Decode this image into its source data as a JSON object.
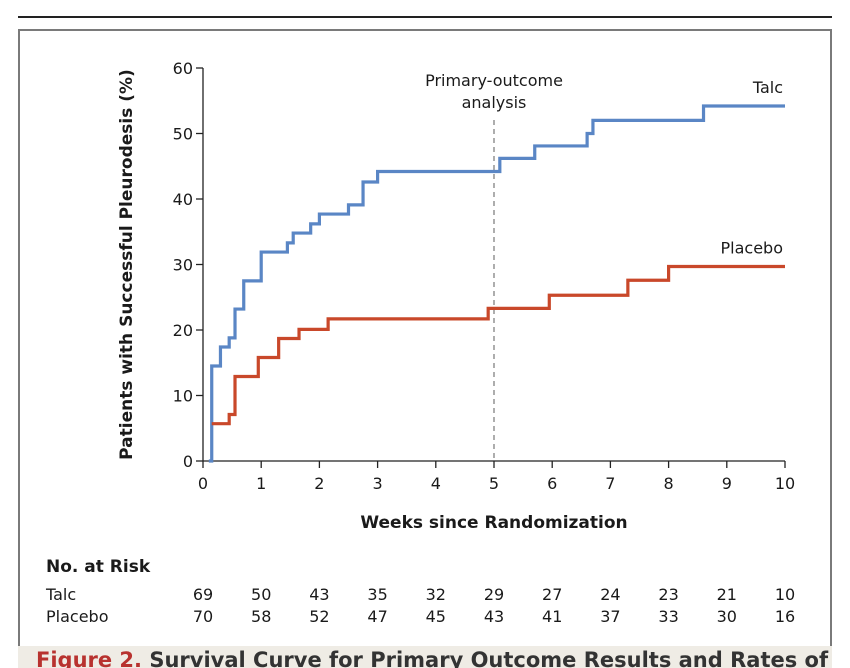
{
  "chart_data": {
    "type": "line",
    "title": "",
    "xlabel": "Weeks since Randomization",
    "ylabel": "Patients with Successful Pleurodesis (%)",
    "xlim": [
      0,
      10
    ],
    "ylim": [
      0,
      60
    ],
    "xticks": [
      0,
      1,
      2,
      3,
      4,
      5,
      6,
      7,
      8,
      9,
      10
    ],
    "yticks": [
      0,
      10,
      20,
      30,
      40,
      50,
      60
    ],
    "grid": false,
    "step": true,
    "series": [
      {
        "name": "Talc",
        "color": "#5a86c5",
        "points": [
          [
            0.1,
            0
          ],
          [
            0.15,
            14.5
          ],
          [
            0.3,
            17.4
          ],
          [
            0.45,
            18.8
          ],
          [
            0.55,
            23.2
          ],
          [
            0.7,
            27.5
          ],
          [
            1.0,
            31.9
          ],
          [
            1.45,
            33.3
          ],
          [
            1.55,
            34.8
          ],
          [
            1.85,
            36.2
          ],
          [
            2.0,
            37.7
          ],
          [
            2.5,
            39.1
          ],
          [
            2.75,
            42.6
          ],
          [
            3.0,
            44.2
          ],
          [
            5.1,
            46.2
          ],
          [
            5.7,
            48.1
          ],
          [
            6.6,
            50.0
          ],
          [
            6.7,
            52.0
          ],
          [
            8.6,
            54.2
          ],
          [
            10.0,
            54.2
          ]
        ]
      },
      {
        "name": "Placebo",
        "color": "#c9482a",
        "points": [
          [
            0.15,
            5.7
          ],
          [
            0.45,
            7.1
          ],
          [
            0.55,
            12.9
          ],
          [
            0.95,
            15.8
          ],
          [
            1.3,
            18.7
          ],
          [
            1.65,
            20.1
          ],
          [
            2.15,
            21.7
          ],
          [
            4.9,
            23.3
          ],
          [
            5.95,
            25.3
          ],
          [
            7.3,
            27.6
          ],
          [
            8.0,
            29.7
          ],
          [
            10.0,
            29.7
          ]
        ]
      }
    ],
    "reference_line": {
      "x": 5,
      "label_lines": [
        "Primary-outcome",
        "analysis"
      ]
    },
    "at_risk": {
      "title": "No. at Risk",
      "rows": [
        {
          "label": "Talc",
          "values": [
            69,
            50,
            43,
            35,
            32,
            29,
            27,
            24,
            23,
            21,
            10
          ]
        },
        {
          "label": "Placebo",
          "values": [
            70,
            58,
            52,
            47,
            45,
            43,
            41,
            37,
            33,
            30,
            16
          ]
        }
      ]
    }
  },
  "caption": {
    "label": "Figure 2.",
    "text": "Survival Curve for Primary Outcome Results and Rates of Successful"
  }
}
